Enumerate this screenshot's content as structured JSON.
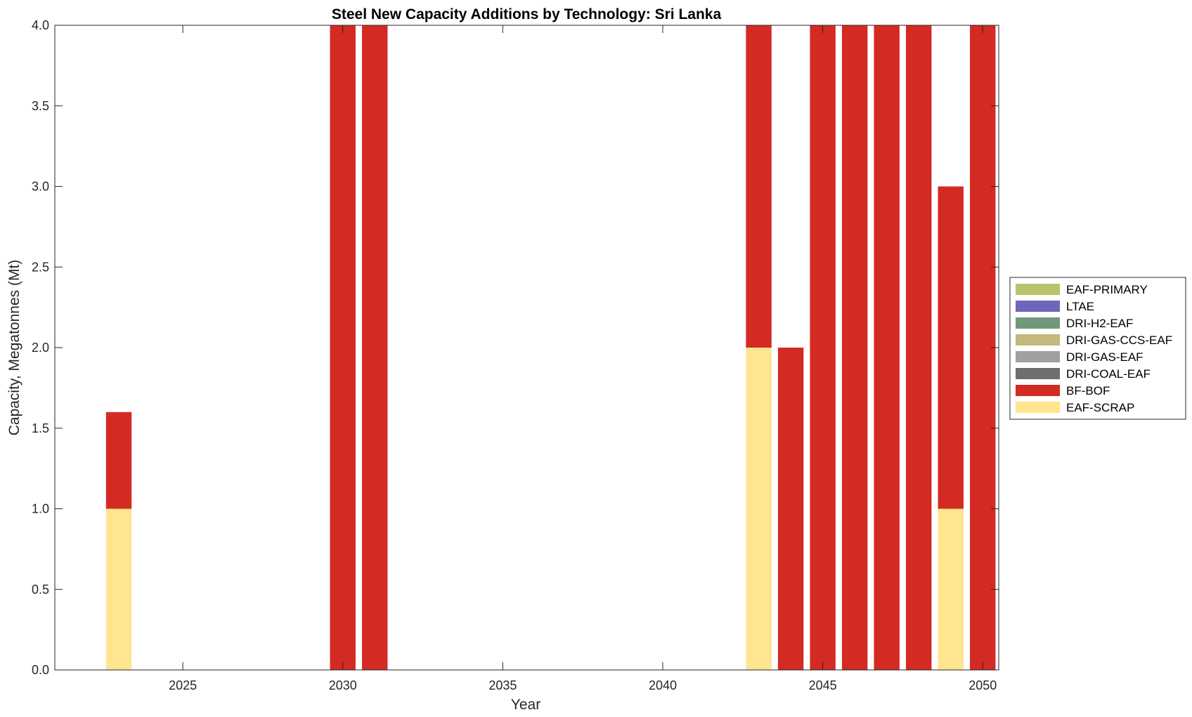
{
  "chart_data": {
    "type": "bar",
    "stacked": true,
    "title": "Steel New Capacity Additions by Technology: Sri Lanka",
    "xlabel": "Year",
    "ylabel": "Capacity, Megatonnes (Mt)",
    "xlim": [
      2021,
      2050.5
    ],
    "ylim": [
      0,
      4
    ],
    "x_ticks": [
      2025,
      2030,
      2035,
      2040,
      2045,
      2050
    ],
    "y_ticks": [
      0,
      0.5,
      1,
      1.5,
      2,
      2.5,
      3,
      3.5,
      4
    ],
    "y_tick_labels": [
      "0.0",
      "0.5",
      "1.0",
      "1.5",
      "2.0",
      "2.5",
      "3.0",
      "3.5",
      "4.0"
    ],
    "x": [
      2023,
      2030,
      2031,
      2043,
      2044,
      2045,
      2046,
      2047,
      2048,
      2049,
      2050
    ],
    "series": [
      {
        "name": "EAF-SCRAP",
        "color": "#FFE58F",
        "values": [
          1.0,
          0,
          0,
          2.0,
          0,
          0,
          0,
          0,
          0,
          1.0,
          0
        ]
      },
      {
        "name": "BF-BOF",
        "color": "#D32A24",
        "values": [
          0.6,
          4.0,
          4.0,
          2.0,
          2.0,
          4.0,
          4.0,
          4.0,
          4.0,
          2.0,
          4.0
        ]
      },
      {
        "name": "DRI-COAL-EAF",
        "color": "#6E6E6E",
        "values": [
          0,
          0,
          0,
          0,
          0,
          0,
          0,
          0,
          0,
          0,
          0
        ]
      },
      {
        "name": "DRI-GAS-EAF",
        "color": "#A0A0A0",
        "values": [
          0,
          0,
          0,
          0,
          0,
          0,
          0,
          0,
          0,
          0,
          0
        ]
      },
      {
        "name": "DRI-GAS-CCS-EAF",
        "color": "#C2B97A",
        "values": [
          0,
          0,
          0,
          0,
          0,
          0,
          0,
          0,
          0,
          0,
          0
        ]
      },
      {
        "name": "DRI-H2-EAF",
        "color": "#719878",
        "values": [
          0,
          0,
          0,
          0,
          0,
          0,
          0,
          0,
          0,
          0,
          0
        ]
      },
      {
        "name": "LTAE",
        "color": "#6E66BA",
        "values": [
          0,
          0,
          0,
          0,
          0,
          0,
          0,
          0,
          0,
          0,
          0
        ]
      },
      {
        "name": "EAF-PRIMARY",
        "color": "#B9C46A",
        "values": [
          0,
          0,
          0,
          0,
          0,
          0,
          0,
          0,
          0,
          0,
          0
        ]
      }
    ],
    "legend": {
      "placement": "east-outside",
      "entries": [
        "EAF-PRIMARY",
        "LTAE",
        "DRI-H2-EAF",
        "DRI-GAS-CCS-EAF",
        "DRI-GAS-EAF",
        "DRI-COAL-EAF",
        "BF-BOF",
        "EAF-SCRAP"
      ]
    }
  }
}
